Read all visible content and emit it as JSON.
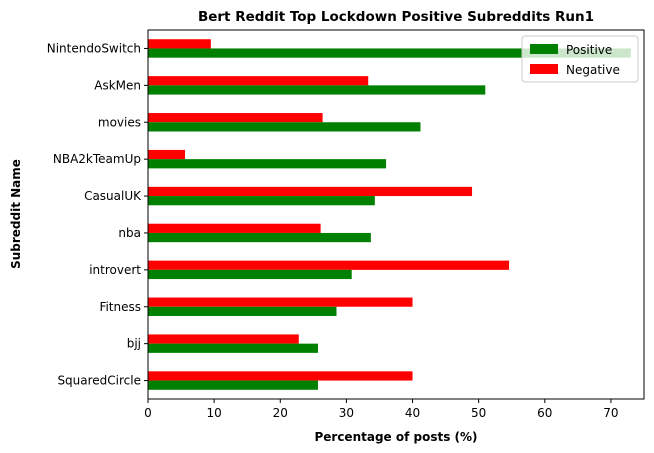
{
  "chart_data": {
    "type": "bar",
    "orientation": "horizontal",
    "title": "Bert Reddit Top Lockdown Positive Subreddits Run1",
    "xlabel": "Percentage of posts (%)",
    "ylabel": "Subreddit Name",
    "categories": [
      "NintendoSwitch",
      "AskMen",
      "movies",
      "NBA2kTeamUp",
      "CasualUK",
      "nba",
      "introvert",
      "Fitness",
      "bjj",
      "SquaredCircle"
    ],
    "series": [
      {
        "name": "Positive",
        "color": "#008000",
        "values": [
          73,
          51,
          41.2,
          36,
          34.3,
          33.7,
          30.8,
          28.5,
          25.7,
          25.7
        ]
      },
      {
        "name": "Negative",
        "color": "#ff0000",
        "values": [
          9.5,
          33.3,
          26.4,
          5.6,
          49,
          26.1,
          54.6,
          40,
          22.8,
          40
        ]
      }
    ],
    "xlim": [
      0,
      75
    ],
    "xticks": [
      0,
      10,
      20,
      30,
      40,
      50,
      60,
      70
    ],
    "grid": false,
    "legend_position": "top-right"
  }
}
